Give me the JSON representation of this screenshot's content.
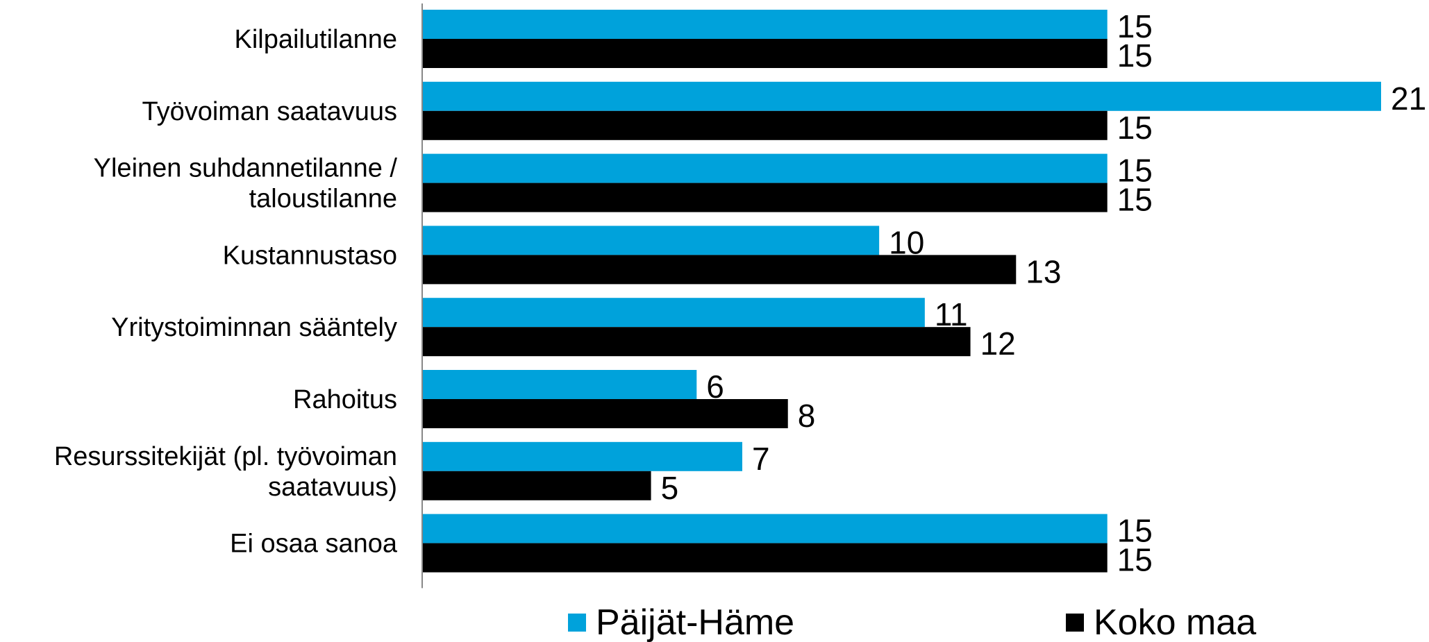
{
  "chart_data": {
    "type": "bar",
    "orientation": "horizontal",
    "categories": [
      [
        "Kilpailutilanne"
      ],
      [
        "Työvoiman saatavuus"
      ],
      [
        "Yleinen suhdannetilanne /",
        "taloustilanne"
      ],
      [
        "Kustannustaso"
      ],
      [
        "Yritystoiminnan sääntely"
      ],
      [
        "Rahoitus"
      ],
      [
        "Resurssitekijät (pl. työvoiman",
        "saatavuus)"
      ],
      [
        "Ei osaa sanoa"
      ]
    ],
    "series": [
      {
        "name": "Päijät-Häme",
        "color": "#00A2DB",
        "values": [
          15,
          21,
          15,
          10,
          11,
          6,
          7,
          15
        ]
      },
      {
        "name": "Koko maa",
        "color": "#000000",
        "values": [
          15,
          15,
          15,
          13,
          12,
          8,
          5,
          15
        ]
      }
    ],
    "xlim": [
      0,
      21
    ],
    "grid": false,
    "legend_position": "bottom",
    "title": "",
    "xlabel": "",
    "ylabel": ""
  }
}
